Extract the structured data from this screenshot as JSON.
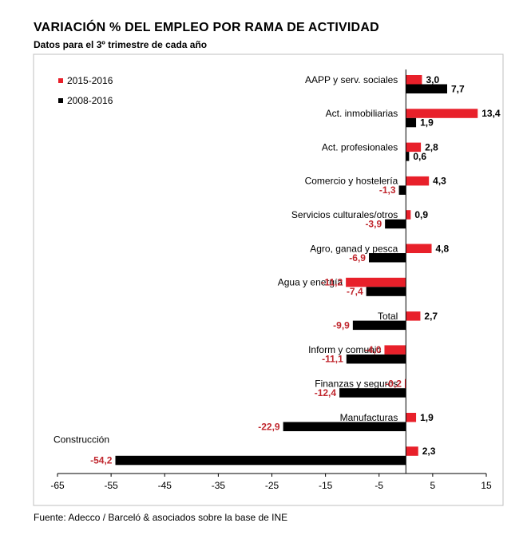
{
  "title": "VARIACIÓN % DEL EMPLEO POR RAMA DE ACTIVIDAD",
  "subtitle": "Datos para el 3º trimestre de cada año",
  "footer": "Fuente: Adecco / Barceló & asociados sobre la base de INE",
  "colors": {
    "s1": "#e8202a",
    "s2": "#000000",
    "neg_label": "#c0262d"
  },
  "chart_data": {
    "type": "bar",
    "orientation": "horizontal",
    "categories": [
      "AAPP y serv. sociales",
      "Act. inmobiliarias",
      "Act. profesionales",
      "Comercio y hostelería",
      "Servicios culturales/otros",
      "Agro, ganad y pesca",
      "Agua y energía",
      "Total",
      "Inform y comunic",
      "Finanzas y seguros",
      "Manufacturas",
      "Construcción"
    ],
    "series": [
      {
        "name": "2015-2016",
        "values": [
          3.0,
          13.4,
          2.8,
          4.3,
          0.9,
          4.8,
          -11.2,
          2.7,
          -4.0,
          -0.2,
          1.9,
          2.3
        ],
        "labels": [
          "3,0",
          "13,4",
          "2,8",
          "4,3",
          "0,9",
          "4,8",
          "-11,2",
          "2,7",
          "-4,0",
          "-0,2",
          "1,9",
          "2,3"
        ]
      },
      {
        "name": "2008-2016",
        "values": [
          7.7,
          1.9,
          0.6,
          -1.3,
          -3.9,
          -6.9,
          -7.4,
          -9.9,
          -11.1,
          -12.4,
          -22.9,
          -54.2
        ],
        "labels": [
          "7,7",
          "1,9",
          "0,6",
          "-1,3",
          "-3,9",
          "-6,9",
          "-7,4",
          "-9,9",
          "-11,1",
          "-12,4",
          "-22,9",
          "-54,2"
        ]
      }
    ],
    "xlim": [
      -65,
      15
    ],
    "xticks": [
      -65,
      -55,
      -45,
      -35,
      -25,
      -15,
      -5,
      5,
      15
    ],
    "grid": false,
    "legend_position": "top-left"
  }
}
